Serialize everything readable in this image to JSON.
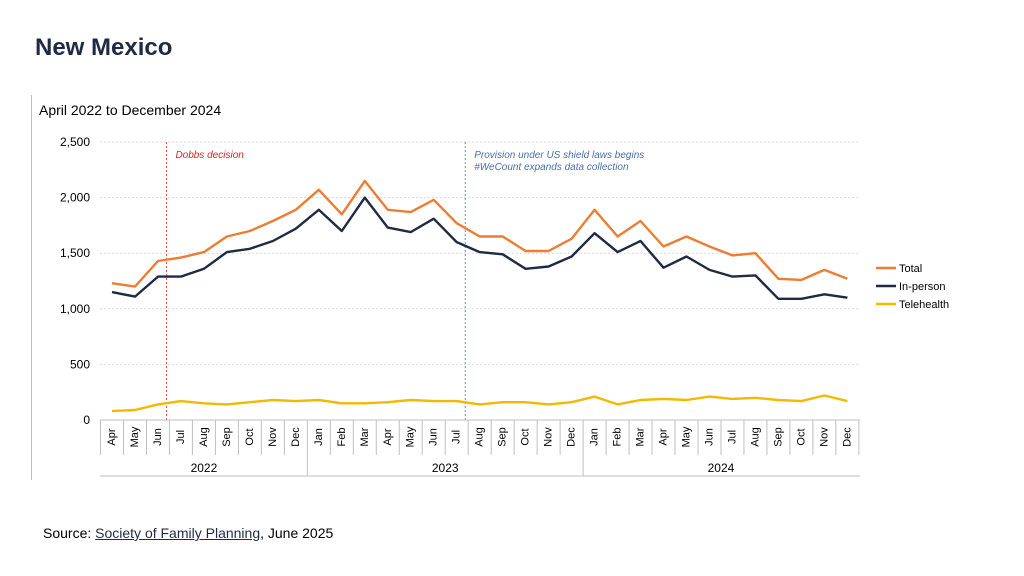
{
  "page": {
    "title": "New Mexico"
  },
  "source": {
    "prefix": "Source: ",
    "link_text": "Society of Family Planning",
    "suffix": ", June 2025"
  },
  "chart_data": {
    "type": "line",
    "title": "April 2022 to December 2024",
    "xlabel": "",
    "ylabel": "",
    "ylim": [
      0,
      2500
    ],
    "yticks": [
      "0",
      "500",
      "1,000",
      "1,500",
      "2,000",
      "2,500"
    ],
    "ytick_values": [
      0,
      500,
      1000,
      1500,
      2000,
      2500
    ],
    "grid": true,
    "legend": "right",
    "categories": [
      "Apr",
      "May",
      "Jun",
      "Jul",
      "Aug",
      "Sep",
      "Oct",
      "Nov",
      "Dec",
      "Jan",
      "Feb",
      "Mar",
      "Apr",
      "May",
      "Jun",
      "Jul",
      "Aug",
      "Sep",
      "Oct",
      "Nov",
      "Dec",
      "Jan",
      "Feb",
      "Mar",
      "Apr",
      "May",
      "Jun",
      "Jul",
      "Aug",
      "Sep",
      "Oct",
      "Nov",
      "Dec"
    ],
    "year_groups": [
      {
        "label": "2022",
        "start": 0,
        "end": 8
      },
      {
        "label": "2023",
        "start": 9,
        "end": 20
      },
      {
        "label": "2024",
        "start": 21,
        "end": 32
      }
    ],
    "series": [
      {
        "name": "Total",
        "color": "#ed7d31",
        "values": [
          1230,
          1200,
          1430,
          1460,
          1510,
          1650,
          1700,
          1790,
          1890,
          2070,
          1850,
          2150,
          1890,
          1870,
          1980,
          1770,
          1650,
          1650,
          1520,
          1520,
          1630,
          1890,
          1650,
          1790,
          1560,
          1650,
          1560,
          1480,
          1500,
          1270,
          1260,
          1350,
          1270
        ]
      },
      {
        "name": "In-person",
        "color": "#1f2a44",
        "values": [
          1150,
          1110,
          1290,
          1290,
          1360,
          1510,
          1540,
          1610,
          1720,
          1890,
          1700,
          2000,
          1730,
          1690,
          1810,
          1600,
          1510,
          1490,
          1360,
          1380,
          1470,
          1680,
          1510,
          1610,
          1370,
          1470,
          1350,
          1290,
          1300,
          1090,
          1090,
          1130,
          1100
        ]
      },
      {
        "name": "Telehealth",
        "color": "#f5b800",
        "values": [
          80,
          90,
          140,
          170,
          150,
          140,
          160,
          180,
          170,
          180,
          150,
          150,
          160,
          180,
          170,
          170,
          140,
          160,
          160,
          140,
          160,
          210,
          140,
          180,
          190,
          180,
          210,
          190,
          200,
          180,
          170,
          220,
          170
        ]
      }
    ],
    "annotations": [
      {
        "index": 2,
        "lines": [
          "Dobbs decision"
        ],
        "color": "#e02020"
      },
      {
        "index": 15,
        "lines": [
          "Provision under US shield laws begins",
          "#WeCount expands data collection"
        ],
        "color": "#4a6fa5"
      }
    ]
  }
}
